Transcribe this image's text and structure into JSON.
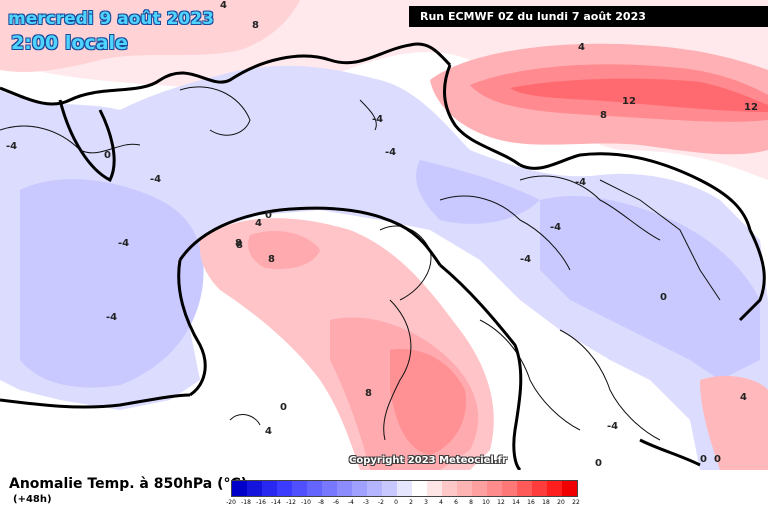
{
  "header": {
    "date": "mercredi 9 août 2023",
    "time": "2:00 locale",
    "run": "Run ECMWF 0Z du lundi 7 août 2023"
  },
  "footer": {
    "title": "Anomalie Temp. à 850hPa (°C)",
    "lead": "(+48h)",
    "copyright": "Copyright 2023 Meteociel.fr"
  },
  "scale": {
    "labels": [
      "-20",
      "-18",
      "-16",
      "-14",
      "-12",
      "-10",
      "-8",
      "-6",
      "-4",
      "-3",
      "-2",
      "0",
      "2",
      "3",
      "4",
      "6",
      "8",
      "10",
      "12",
      "14",
      "16",
      "18",
      "20",
      "22"
    ],
    "colors": [
      "#0000c8",
      "#1414dc",
      "#2828f0",
      "#3c3cff",
      "#5050ff",
      "#6464ff",
      "#7878ff",
      "#8c8cff",
      "#a0a0ff",
      "#b4b4ff",
      "#c8c8ff",
      "#e6e6ff",
      "#ffffff",
      "#ffe6e6",
      "#ffc8c8",
      "#ffb4b4",
      "#ffa0a0",
      "#ff8c8c",
      "#ff7878",
      "#ff5a5a",
      "#ff3c3c",
      "#ff1e1e",
      "#f00000"
    ]
  },
  "contour_labels": [
    {
      "text": "4"
    },
    {
      "text": "8"
    },
    {
      "text": "0"
    },
    {
      "text": "-4"
    },
    {
      "text": "-4"
    },
    {
      "text": "-4"
    },
    {
      "text": "-4"
    },
    {
      "text": "0"
    },
    {
      "text": "4"
    },
    {
      "text": "8"
    },
    {
      "text": "8"
    },
    {
      "text": "8"
    },
    {
      "text": "4"
    },
    {
      "text": "12"
    },
    {
      "text": "12"
    },
    {
      "text": "8"
    },
    {
      "text": "-4"
    },
    {
      "text": "-4"
    },
    {
      "text": "-4"
    },
    {
      "text": "0"
    },
    {
      "text": "0"
    },
    {
      "text": "4"
    },
    {
      "text": "-4"
    },
    {
      "text": "0"
    },
    {
      "text": "0"
    },
    {
      "text": "8"
    },
    {
      "text": "-4"
    },
    {
      "text": "-4"
    },
    {
      "text": "4"
    },
    {
      "text": "0"
    }
  ]
}
